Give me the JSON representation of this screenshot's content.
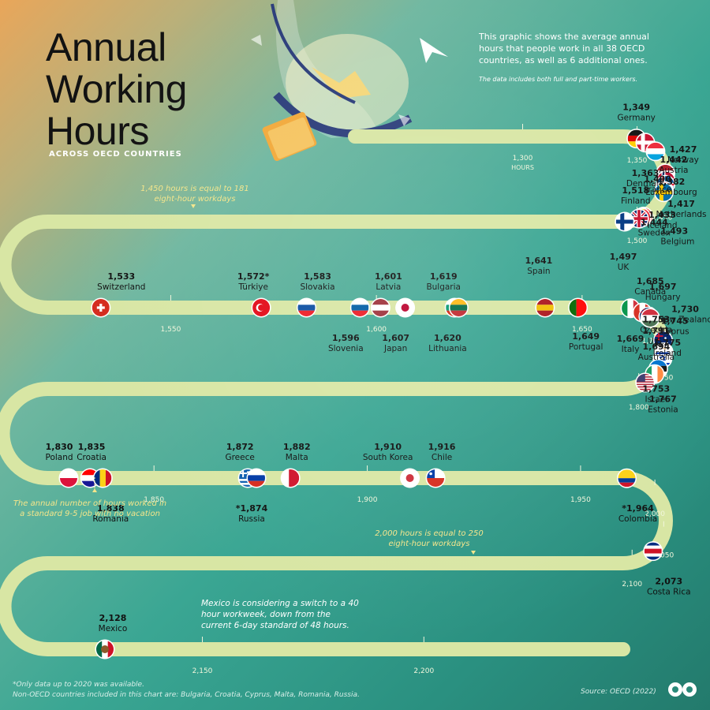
{
  "header": {
    "title_lines": [
      "Annual",
      "Working",
      "Hours"
    ],
    "subtitle": "ACROSS OECD COUNTRIES",
    "intro": "This graphic shows the average annual hours that people work in all 38 OECD countries, as well as 6 additional ones.",
    "intro_note": "The data includes both full and part-time workers."
  },
  "callouts": {
    "workdays_1450": "1,450 hours is equal to 181 eight-hour workdays",
    "standard_job": "The annual number of hours worked in a standard 9-5 job with no vacation",
    "workdays_2000": "2,000 hours is equal to 250 eight-hour workdays",
    "mexico": "Mexico is considering a switch to a 40 hour workweek, down from the current 6-day standard of 48 hours."
  },
  "footer": {
    "footnote_line1": "*Only data up to 2020 was available.",
    "footnote_line2": "Non-OECD countries included in this chart are: Bulgaria, Croatia, Cyprus, Malta, Romania, Russia.",
    "source": "Source: OECD (2022)"
  },
  "colors": {
    "track": "#d8e6a4",
    "text": "#111111",
    "tick": "#f1f6dc",
    "callout": "#f4e58a"
  },
  "chart_data": {
    "type": "scatter",
    "title": "Annual Working Hours",
    "subtitle": "ACROSS OECD COUNTRIES",
    "unit_label": "HOURS",
    "axis_ticks": [
      1300,
      1350,
      1400,
      1450,
      1500,
      1550,
      1600,
      1650,
      1700,
      1750,
      1800,
      1850,
      1900,
      1950,
      2000,
      2050,
      2100,
      2150,
      2200
    ],
    "axis_tick_labels": [
      "1,300",
      "1,350",
      "1,400",
      "1,450",
      "1,500",
      "1,550",
      "1,600",
      "1,650",
      "1,700",
      "1,750",
      "1,800",
      "1,850",
      "1,900",
      "1,950",
      "2,000",
      "2,050",
      "2,100",
      "2,150",
      "2,200"
    ],
    "points": [
      {
        "country": "Germany",
        "value": 1349,
        "label": "1,349",
        "flag": "germany"
      },
      {
        "country": "Denmark",
        "value": 1363,
        "label": "1,363",
        "flag": "denmark"
      },
      {
        "country": "Luxembourg",
        "value": 1382,
        "label": "1,382",
        "flag": "luxembourg"
      },
      {
        "country": "Netherlands",
        "value": 1417,
        "label": "1,417",
        "flag": "netherlands"
      },
      {
        "country": "Norway",
        "value": 1427,
        "label": "1,427",
        "flag": "norway"
      },
      {
        "country": "Iceland",
        "value": 1433,
        "label": "1,433",
        "flag": "iceland"
      },
      {
        "country": "Austria",
        "value": 1442,
        "label": "1,442",
        "flag": "austria"
      },
      {
        "country": "Sweden",
        "value": 1444,
        "label": "1,444",
        "flag": "sweden"
      },
      {
        "country": "France",
        "value": 1490,
        "label": "1,490",
        "flag": "france"
      },
      {
        "country": "Belgium",
        "value": 1493,
        "label": "1,493",
        "flag": "belgium"
      },
      {
        "country": "UK",
        "value": 1497,
        "label": "1,497",
        "flag": "uk"
      },
      {
        "country": "Finland",
        "value": 1518,
        "label": "1,518",
        "flag": "finland"
      },
      {
        "country": "Switzerland",
        "value": 1533,
        "label": "1,533",
        "flag": "switzerland"
      },
      {
        "country": "Türkiye",
        "value": 1572,
        "label": "1,572*",
        "flag": "turkey"
      },
      {
        "country": "Slovakia",
        "value": 1583,
        "label": "1,583",
        "flag": "slovakia"
      },
      {
        "country": "Slovenia",
        "value": 1596,
        "label": "1,596",
        "flag": "slovenia"
      },
      {
        "country": "Latvia",
        "value": 1601,
        "label": "1,601",
        "flag": "latvia"
      },
      {
        "country": "Japan",
        "value": 1607,
        "label": "1,607",
        "flag": "japan"
      },
      {
        "country": "Bulgaria",
        "value": 1619,
        "label": "1,619",
        "flag": "bulgaria"
      },
      {
        "country": "Lithuania",
        "value": 1620,
        "label": "1,620",
        "flag": "lithuania"
      },
      {
        "country": "Spain",
        "value": 1641,
        "label": "1,641",
        "flag": "spain"
      },
      {
        "country": "Portugal",
        "value": 1649,
        "label": "1,649",
        "flag": "portugal"
      },
      {
        "country": "Italy",
        "value": 1669,
        "label": "1,669",
        "flag": "italy"
      },
      {
        "country": "Canada",
        "value": 1685,
        "label": "1,685",
        "flag": "canada"
      },
      {
        "country": "Australia",
        "value": 1694,
        "label": "1,694",
        "flag": "australia"
      },
      {
        "country": "Hungary",
        "value": 1697,
        "label": "1,697",
        "flag": "hungary"
      },
      {
        "country": "New Zealand",
        "value": 1730,
        "label": "1,730",
        "flag": "newzealand"
      },
      {
        "country": "Cyprus",
        "value": 1745,
        "label": "1,745",
        "flag": "cyprus"
      },
      {
        "country": "Czechia",
        "value": 1753,
        "label": "1,753",
        "flag": "czechia"
      },
      {
        "country": "Israel",
        "value": 1753,
        "label": "1,753",
        "flag": "israel"
      },
      {
        "country": "Estonia",
        "value": 1767,
        "label": "1,767",
        "flag": "estonia"
      },
      {
        "country": "Ireland",
        "value": 1775,
        "label": "1,775",
        "flag": "ireland"
      },
      {
        "country": "U.S.",
        "value": 1791,
        "label": "1,791",
        "flag": "usa"
      },
      {
        "country": "Poland",
        "value": 1830,
        "label": "1,830",
        "flag": "poland"
      },
      {
        "country": "Croatia",
        "value": 1835,
        "label": "1,835",
        "flag": "croatia"
      },
      {
        "country": "Romania",
        "value": 1838,
        "label": "1,838",
        "flag": "romania"
      },
      {
        "country": "Greece",
        "value": 1872,
        "label": "1,872",
        "flag": "greece"
      },
      {
        "country": "Russia",
        "value": 1874,
        "label": "*1,874",
        "flag": "russia"
      },
      {
        "country": "Malta",
        "value": 1882,
        "label": "1,882",
        "flag": "malta"
      },
      {
        "country": "South Korea",
        "value": 1910,
        "label": "1,910",
        "flag": "southkorea"
      },
      {
        "country": "Chile",
        "value": 1916,
        "label": "1,916",
        "flag": "chile"
      },
      {
        "country": "Colombia",
        "value": 1964,
        "label": "*1,964",
        "flag": "colombia"
      },
      {
        "country": "Costa Rica",
        "value": 2073,
        "label": "2,073",
        "flag": "costarica"
      },
      {
        "country": "Mexico",
        "value": 2128,
        "label": "2,128",
        "flag": "mexico"
      }
    ]
  }
}
